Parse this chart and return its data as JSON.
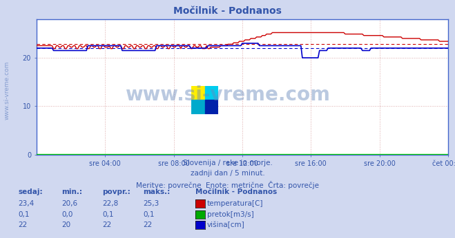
{
  "title": "Močilnik - Podnanos",
  "title_color": "#3355aa",
  "bg_color": "#d0d8f0",
  "plot_bg_color": "#ffffff",
  "xlim": [
    0,
    288
  ],
  "ylim": [
    0,
    28
  ],
  "yticks": [
    0,
    10,
    20
  ],
  "xtick_labels": [
    "sre 04:00",
    "sre 08:00",
    "sre 12:00",
    "sre 16:00",
    "sre 20:00",
    "čet 00:00"
  ],
  "xtick_positions": [
    48,
    96,
    144,
    192,
    240,
    288
  ],
  "grid_color": "#ccccdd",
  "watermark": "www.si-vreme.com",
  "subtitle1": "Slovenija / reke in morje.",
  "subtitle2": "zadnji dan / 5 minut.",
  "subtitle3": "Meritve: povrečne  Enote: metrične  Črta: povrečje",
  "subtitle_color": "#3355aa",
  "table_headers": [
    "sedaj:",
    "min.:",
    "povpr.:",
    "maks.:"
  ],
  "table_col0": [
    "23,4",
    "0,1",
    "22"
  ],
  "table_col1": [
    "20,6",
    "0,0",
    "20"
  ],
  "table_col2": [
    "22,8",
    "0,1",
    "22"
  ],
  "table_col3": [
    "25,3",
    "0,1",
    "22"
  ],
  "legend_title": "Močilnik - Podnanos",
  "legend_items": [
    "temperatura[C]",
    "pretok[m3/s]",
    "višina[cm]"
  ],
  "legend_colors": [
    "#cc0000",
    "#00aa00",
    "#0000cc"
  ],
  "line_color_temp": "#cc0000",
  "line_color_pretok": "#00cc00",
  "line_color_visina": "#0000cc",
  "n_points": 288,
  "temp_avg": 22.8,
  "visina_avg": 22.0,
  "pretok_avg": 0.1
}
